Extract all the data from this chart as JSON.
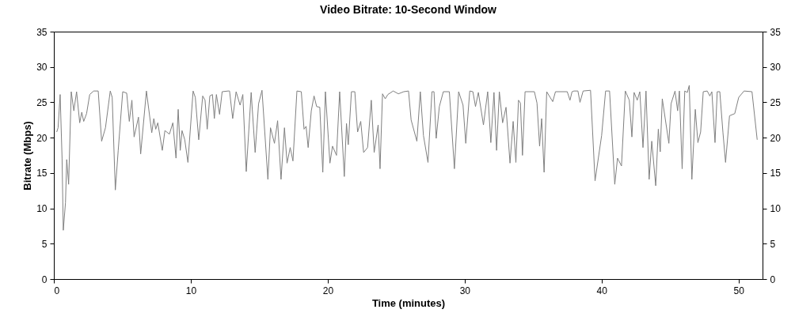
{
  "chart_data": {
    "type": "line",
    "title": "Video Bitrate: 10-Second Window",
    "xlabel": "Time (minutes)",
    "ylabel": "Bitrate (Mbps)",
    "xlim": [
      0,
      51.75
    ],
    "xticks": [
      0,
      10,
      20,
      30,
      40,
      50
    ],
    "ylim": [
      0,
      35
    ],
    "yticks": [
      0,
      5,
      10,
      15,
      20,
      25,
      30,
      35
    ],
    "y2lim": [
      0,
      35
    ],
    "y2ticks": [
      0,
      5,
      10,
      15,
      20,
      25,
      30,
      35
    ],
    "grid": false,
    "legend": false,
    "series": [
      {
        "color": "#808080",
        "x": [
          0.21,
          0.31,
          0.46,
          0.6,
          0.69,
          0.85,
          0.94,
          1.08,
          1.27,
          1.46,
          1.66,
          1.89,
          2.04,
          2.18,
          2.39,
          2.62,
          2.91,
          3.24,
          3.49,
          3.77,
          4.12,
          4.26,
          4.49,
          4.7,
          5.03,
          5.32,
          5.51,
          5.7,
          5.86,
          6.18,
          6.34,
          6.76,
          7.15,
          7.3,
          7.44,
          7.59,
          7.92,
          8.11,
          8.44,
          8.69,
          8.92,
          9.08,
          9.23,
          9.36,
          9.56,
          9.79,
          10.17,
          10.33,
          10.58,
          10.87,
          11.04,
          11.2,
          11.39,
          11.58,
          11.72,
          11.87,
          12.1,
          12.29,
          12.73,
          12.83,
          13.06,
          13.31,
          13.6,
          13.8,
          14.05,
          14.41,
          14.7,
          14.95,
          15.2,
          15.63,
          15.82,
          16.11,
          16.34,
          16.59,
          16.84,
          17.03,
          17.26,
          17.46,
          17.75,
          18.07,
          18.27,
          18.42,
          18.57,
          18.8,
          19.0,
          19.19,
          19.42,
          19.64,
          19.83,
          20.16,
          20.35,
          20.64,
          20.87,
          21.21,
          21.37,
          21.5,
          21.73,
          21.98,
          22.18,
          22.41,
          22.62,
          22.91,
          23.18,
          23.39,
          23.68,
          23.82,
          24.0,
          24.2,
          24.39,
          24.78,
          25.16,
          25.55,
          25.9,
          26.09,
          26.51,
          26.76,
          26.99,
          27.32,
          27.61,
          27.76,
          27.92,
          28.15,
          28.44,
          28.88,
          29.25,
          29.56,
          29.88,
          30.08,
          30.37,
          30.6,
          30.79,
          31.0,
          31.37,
          31.68,
          31.91,
          32.14,
          32.33,
          32.53,
          32.77,
          33.02,
          33.31,
          33.54,
          33.74,
          33.93,
          34.07,
          34.22,
          34.41,
          35.09,
          35.28,
          35.47,
          35.62,
          35.8,
          35.99,
          36.24,
          36.43,
          36.63,
          37.49,
          37.69,
          37.84,
          37.98,
          38.27,
          38.42,
          38.65,
          39.19,
          39.52,
          40.0,
          40.29,
          40.58,
          40.96,
          41.16,
          41.45,
          41.73,
          42.02,
          42.21,
          42.37,
          42.6,
          42.79,
          43.02,
          43.24,
          43.47,
          43.66,
          43.95,
          44.14,
          44.28,
          44.43,
          44.91,
          45.07,
          45.36,
          45.55,
          45.68,
          45.88,
          46.07,
          46.26,
          46.4,
          46.59,
          46.84,
          47.03,
          47.23,
          47.42,
          47.71,
          47.9,
          48.05,
          48.28,
          48.44,
          48.63,
          48.86,
          49.05,
          49.34,
          49.72,
          50.01,
          50.4,
          50.98,
          51.36
        ],
        "values": [
          20.8,
          21.4,
          26.1,
          17.1,
          6.9,
          10.8,
          16.9,
          13.4,
          26.5,
          23.8,
          26.5,
          22.1,
          23.6,
          22.3,
          23.4,
          26.1,
          26.6,
          26.6,
          19.5,
          21.4,
          26.6,
          25.7,
          12.6,
          18.2,
          26.5,
          26.3,
          22.3,
          25.3,
          20.1,
          22.9,
          17.7,
          26.6,
          20.7,
          22.7,
          21.2,
          22.1,
          18.2,
          21.0,
          20.5,
          22.1,
          17.1,
          24.0,
          18.2,
          21.0,
          19.7,
          16.5,
          26.6,
          25.7,
          19.7,
          25.9,
          25.3,
          21.2,
          25.9,
          26.1,
          22.7,
          26.1,
          23.3,
          26.5,
          26.6,
          26.6,
          22.7,
          26.5,
          24.6,
          26.1,
          15.2,
          26.4,
          17.9,
          24.8,
          26.7,
          14.1,
          21.4,
          19.2,
          22.4,
          14.1,
          21.4,
          16.4,
          18.6,
          16.7,
          26.6,
          26.5,
          21.2,
          21.6,
          18.6,
          23.8,
          25.9,
          24.4,
          24.3,
          15.1,
          26.5,
          16.4,
          18.8,
          17.5,
          26.5,
          14.5,
          22.0,
          19.0,
          26.5,
          26.5,
          20.8,
          22.3,
          17.9,
          18.6,
          25.3,
          17.9,
          21.8,
          15.6,
          26.2,
          25.5,
          26.1,
          26.6,
          26.2,
          26.5,
          26.6,
          22.5,
          19.5,
          26.5,
          20.3,
          16.5,
          26.5,
          26.5,
          19.9,
          24.4,
          26.5,
          26.5,
          15.6,
          26.5,
          24.6,
          19.2,
          26.6,
          26.5,
          24.4,
          26.4,
          21.8,
          26.5,
          19.3,
          26.4,
          18.2,
          26.5,
          22.1,
          24.3,
          16.4,
          22.3,
          16.5,
          25.3,
          24.9,
          17.5,
          26.5,
          26.5,
          24.9,
          18.8,
          22.7,
          15.1,
          26.5,
          25.7,
          25.1,
          26.5,
          26.5,
          25.3,
          26.5,
          26.6,
          26.6,
          25.0,
          26.6,
          26.7,
          13.9,
          20.3,
          26.6,
          26.6,
          13.4,
          17.1,
          16.0,
          26.6,
          25.3,
          20.1,
          26.4,
          25.3,
          26.5,
          18.6,
          26.6,
          14.1,
          19.5,
          13.2,
          21.2,
          18.0,
          25.5,
          19.2,
          24.8,
          26.6,
          23.8,
          26.6,
          15.6,
          26.6,
          26.4,
          27.4,
          14.1,
          24.0,
          19.3,
          20.8,
          26.5,
          26.6,
          25.9,
          26.5,
          19.3,
          26.5,
          26.5,
          20.7,
          16.5,
          23.1,
          23.4,
          25.7,
          26.6,
          26.5,
          19.7
        ]
      }
    ]
  }
}
